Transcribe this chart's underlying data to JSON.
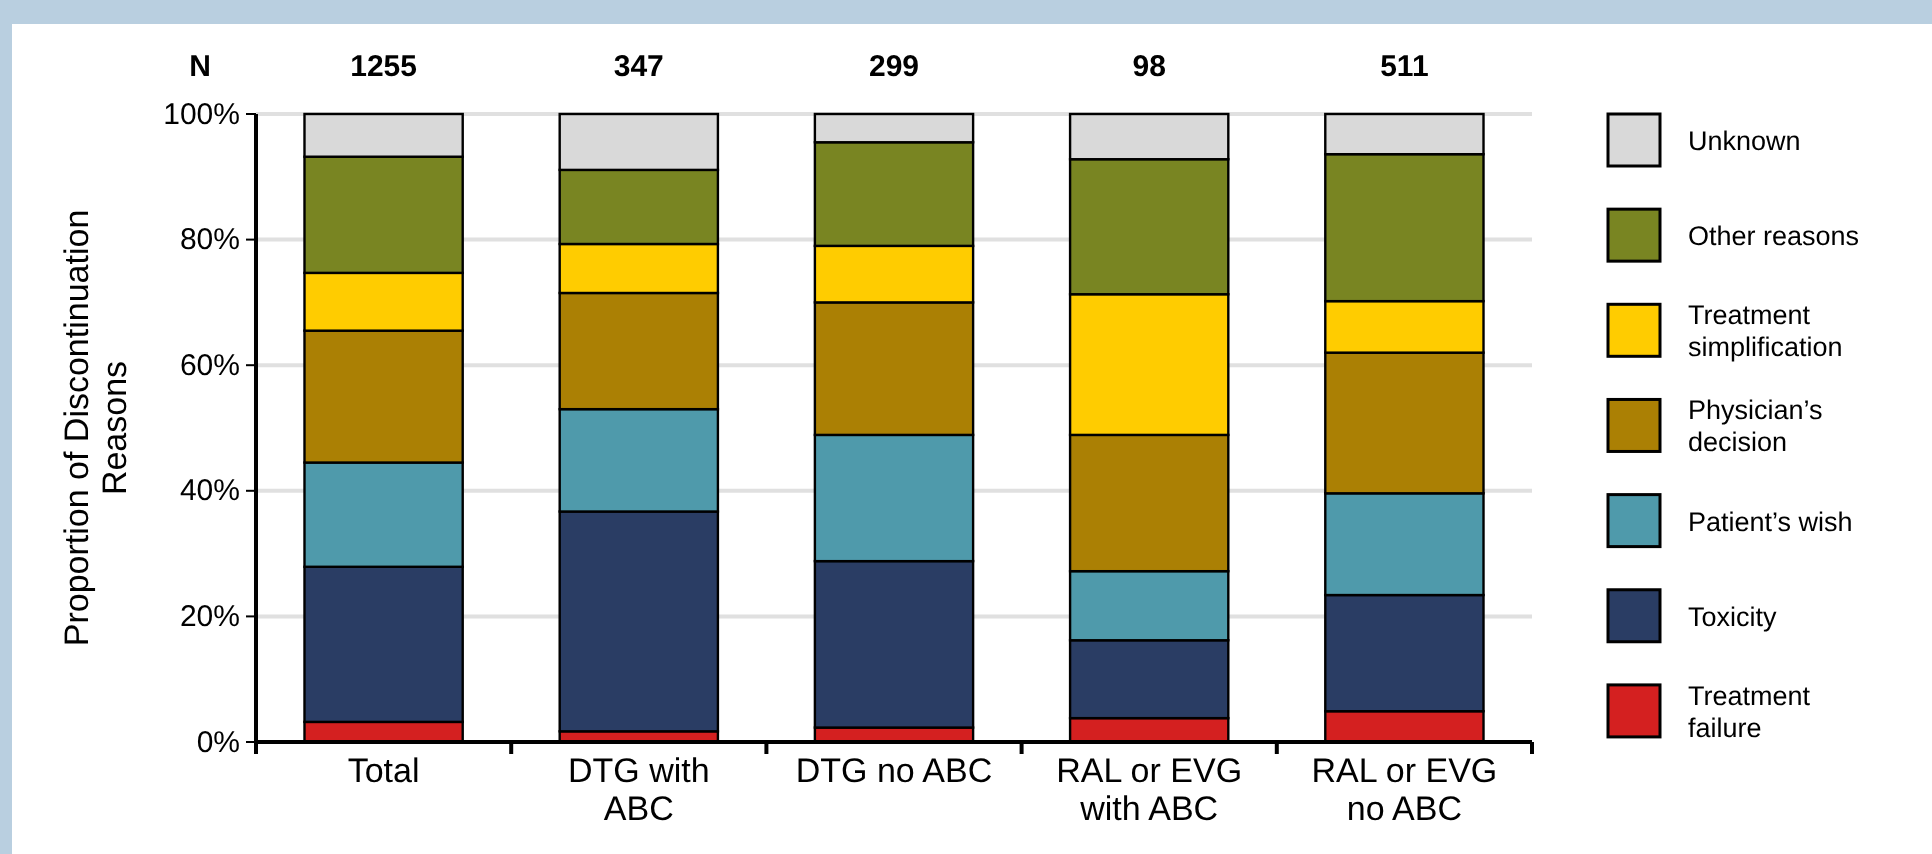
{
  "chart_data": {
    "type": "bar",
    "stacked": true,
    "categories": [
      "Total",
      "DTG with ABC",
      "DTG no ABC",
      "RAL or EVG with ABC",
      "RAL or EVG no ABC"
    ],
    "ylabel": "Proportion of Discontinuation Reasons",
    "ylim": [
      0,
      100
    ],
    "yticks": [
      {
        "value": 0,
        "label": "0%"
      },
      {
        "value": 20,
        "label": "20%"
      },
      {
        "value": 40,
        "label": "40%"
      },
      {
        "value": 60,
        "label": "60%"
      },
      {
        "value": 80,
        "label": "80%"
      },
      {
        "value": 100,
        "label": "100%"
      }
    ],
    "grid": "y",
    "legend": "right",
    "annotations": [
      "N",
      "1255",
      "347",
      "299",
      "98",
      "511"
    ],
    "series": [
      {
        "name": "Treatment failure",
        "color": "#d42020",
        "values": [
          3.2,
          1.7,
          2.3,
          3.8,
          4.9
        ]
      },
      {
        "name": "Toxicity",
        "color": "#2a3d64",
        "values": [
          24.7,
          35.0,
          26.5,
          12.4,
          18.5
        ]
      },
      {
        "name": "Patient’s wish",
        "color": "#4f9aab",
        "values": [
          16.6,
          16.3,
          20.1,
          11.0,
          16.2
        ]
      },
      {
        "name": "Physician’s decision",
        "color": "#ab8004",
        "values": [
          21.0,
          18.5,
          21.1,
          21.7,
          22.4
        ]
      },
      {
        "name": "Treatment simplification",
        "color": "#ffcc00",
        "values": [
          9.2,
          7.8,
          9.0,
          22.4,
          8.2
        ]
      },
      {
        "name": "Other reasons",
        "color": "#798522",
        "values": [
          18.5,
          11.8,
          16.5,
          21.5,
          23.4
        ]
      },
      {
        "name": "Unknown",
        "color": "#d9d9d9",
        "values": [
          6.8,
          8.9,
          4.5,
          7.2,
          6.4
        ]
      }
    ]
  }
}
